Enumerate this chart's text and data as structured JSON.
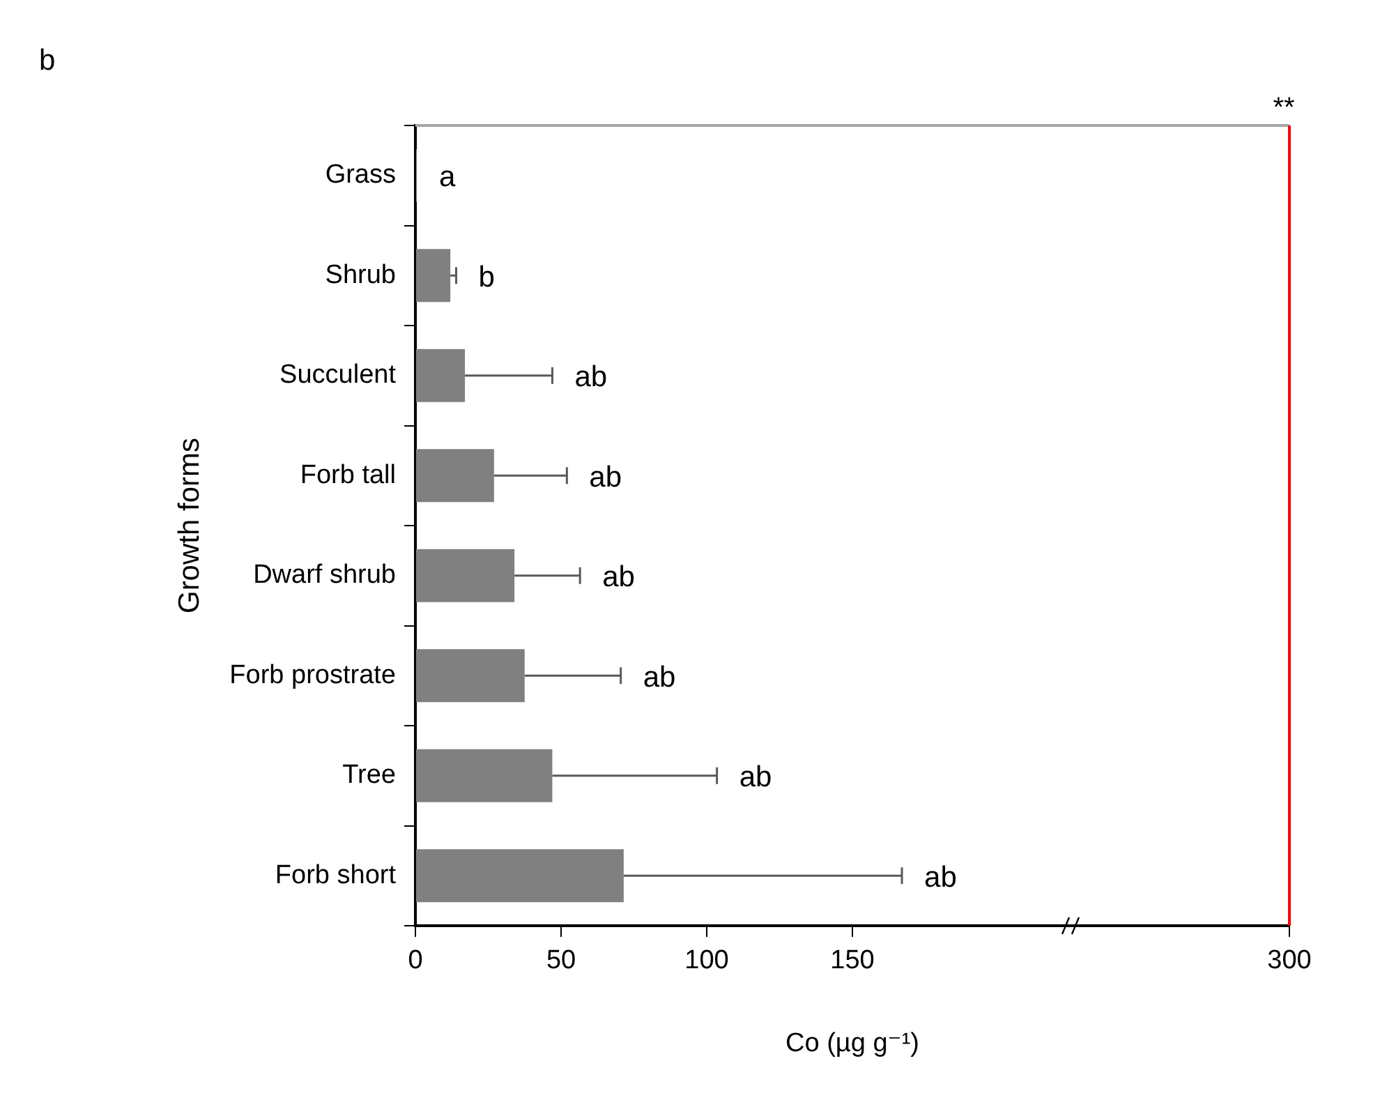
{
  "chart_data": {
    "type": "bar",
    "orientation": "horizontal",
    "xlabel": "Co (µg g⁻¹)",
    "ylabel": "Growth forms",
    "categories": [
      "Grass",
      "Shrub",
      "Succulent",
      "Forb tall",
      "Dwarf shrub",
      "Forb prostrate",
      "Tree",
      "Forb short"
    ],
    "values": [
      0.5,
      12,
      17,
      27,
      34,
      37.5,
      47,
      71.5
    ],
    "errors": [
      null,
      [
        12,
        14
      ],
      [
        17,
        47
      ],
      [
        27,
        52
      ],
      [
        34,
        56.5
      ],
      [
        37.5,
        70.5
      ],
      [
        47,
        103.5
      ],
      [
        71.5,
        167
      ]
    ],
    "color": "#808080",
    "xlim": [
      0,
      300
    ],
    "xticks": [
      0,
      50,
      100,
      150,
      300
    ],
    "ref_lines": [
      {
        "axis": "x",
        "value": 300,
        "label": "**",
        "color": "#ff0000"
      }
    ],
    "annotations": [
      "b",
      {
        "text": "a",
        "x": 0.5,
        "y": "Grass"
      },
      {
        "text": "b",
        "x": 14,
        "y": "Shrub"
      },
      {
        "text": "ab",
        "x": 47,
        "y": "Succulent"
      },
      {
        "text": "ab",
        "x": 52,
        "y": "Forb tall"
      },
      {
        "text": "ab",
        "x": 56.5,
        "y": "Dwarf shrub"
      },
      {
        "text": "ab",
        "x": 70.5,
        "y": "Forb prostrate"
      },
      {
        "text": "ab",
        "x": 103.5,
        "y": "Tree"
      },
      {
        "text": "ab",
        "x": 167,
        "y": "Forb short"
      }
    ],
    "grid": false,
    "legend": false
  }
}
